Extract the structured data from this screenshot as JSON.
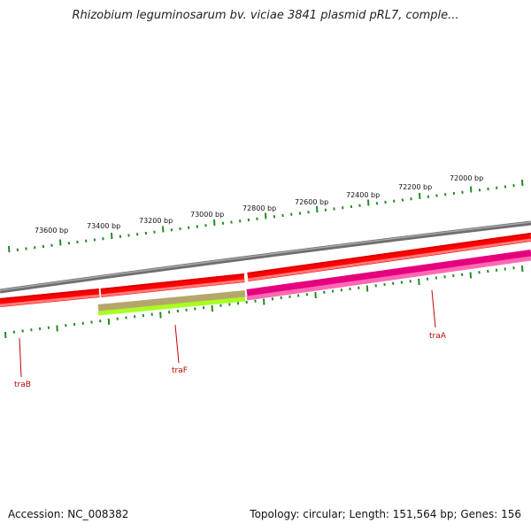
{
  "title": "Rhizobium leguminosarum bv. viciae 3841 plasmid pRL7, comple...",
  "footer": {
    "accession": "Accession: NC_008382",
    "summary": "Topology: circular; Length: 151,564 bp; Genes: 156"
  },
  "ruler": {
    "tick_labels": [
      "73600 bp",
      "73400 bp",
      "73200 bp",
      "73000 bp",
      "72800 bp",
      "72600 bp",
      "72400 bp",
      "72200 bp",
      "72000 bp"
    ]
  },
  "genes": [
    {
      "name": "traB",
      "color": "#ff0000"
    },
    {
      "name": "traF",
      "color": "#b5a76c"
    },
    {
      "name": "traA",
      "color": "#e6007e"
    }
  ],
  "colors": {
    "backbone": "#808080",
    "cds": "#ff0000",
    "tick": "#228b22",
    "label": "#c00000",
    "traF_lower": "#aaff22",
    "traA_lower": "#ff69b4"
  }
}
